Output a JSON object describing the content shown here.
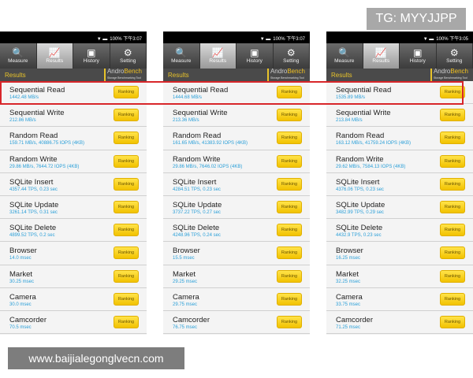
{
  "watermark_top": "TG: MYYJJPP",
  "watermark_bottom": "www.baijialegonglvecn.com",
  "tabs": [
    {
      "label": "Measure",
      "icon": "search-icon",
      "glyph": "🔍"
    },
    {
      "label": "Results",
      "icon": "chart-icon",
      "glyph": "📈"
    },
    {
      "label": "History",
      "icon": "history-icon",
      "glyph": "▣"
    },
    {
      "label": "Setting",
      "icon": "gear-icon",
      "glyph": "⚙"
    }
  ],
  "results_label": "Results",
  "logo": {
    "andro": "Andro",
    "bench": "Bench",
    "tagline": "Storage Benchmarking Tool"
  },
  "ranking_label": "Ranking",
  "highlight_color": "#d8262a",
  "tests": [
    "Sequential Read",
    "Sequential Write",
    "Random Read",
    "Random Write",
    "SQLite Insert",
    "SQLite Update",
    "SQLite Delete",
    "Browser",
    "Market",
    "Camera",
    "Camcorder"
  ],
  "panels": [
    {
      "status": "100% 下午3:07",
      "values": [
        "1442.48 MB/s",
        "212.86 MB/s",
        "159.71 MB/s, 40886.75 IOPS (4KB)",
        "29.86 MB/s, 7644.72 IOPS (4KB)",
        "4357.44 TPS, 0.23 sec",
        "3261.14 TPS, 0.31 sec",
        "4899.52 TPS, 0.2 sec",
        "14.0 msec",
        "30.25 msec",
        "30.0 msec",
        "70.5 msec"
      ]
    },
    {
      "status": "100% 下午3:07",
      "values": [
        "1444.68 MB/s",
        "213.36 MB/s",
        "161.65 MB/s, 41383.92 IOPS (4KB)",
        "29.86 MB/s, 7646.02 IOPS (4KB)",
        "4284.51 TPS, 0.23 sec",
        "3737.22 TPS, 0.27 sec",
        "4248.96 TPS, 0.24 sec",
        "15.5 msec",
        "29.25 msec",
        "29.75 msec",
        "76.75 msec"
      ]
    },
    {
      "status": "100% 下午3:05",
      "values": [
        "1535.89 MB/s",
        "213.84 MB/s",
        "163.12 MB/s, 41759.24 IOPS (4KB)",
        "29.62 MB/s, 7584.13 IOPS (4KB)",
        "4376.06 TPS, 0.23 sec",
        "3482.99 TPS, 0.29 sec",
        "4432.9 TPS, 0.23 sec",
        "16.25 msec",
        "32.25 msec",
        "33.75 msec",
        "71.25 msec"
      ]
    }
  ]
}
